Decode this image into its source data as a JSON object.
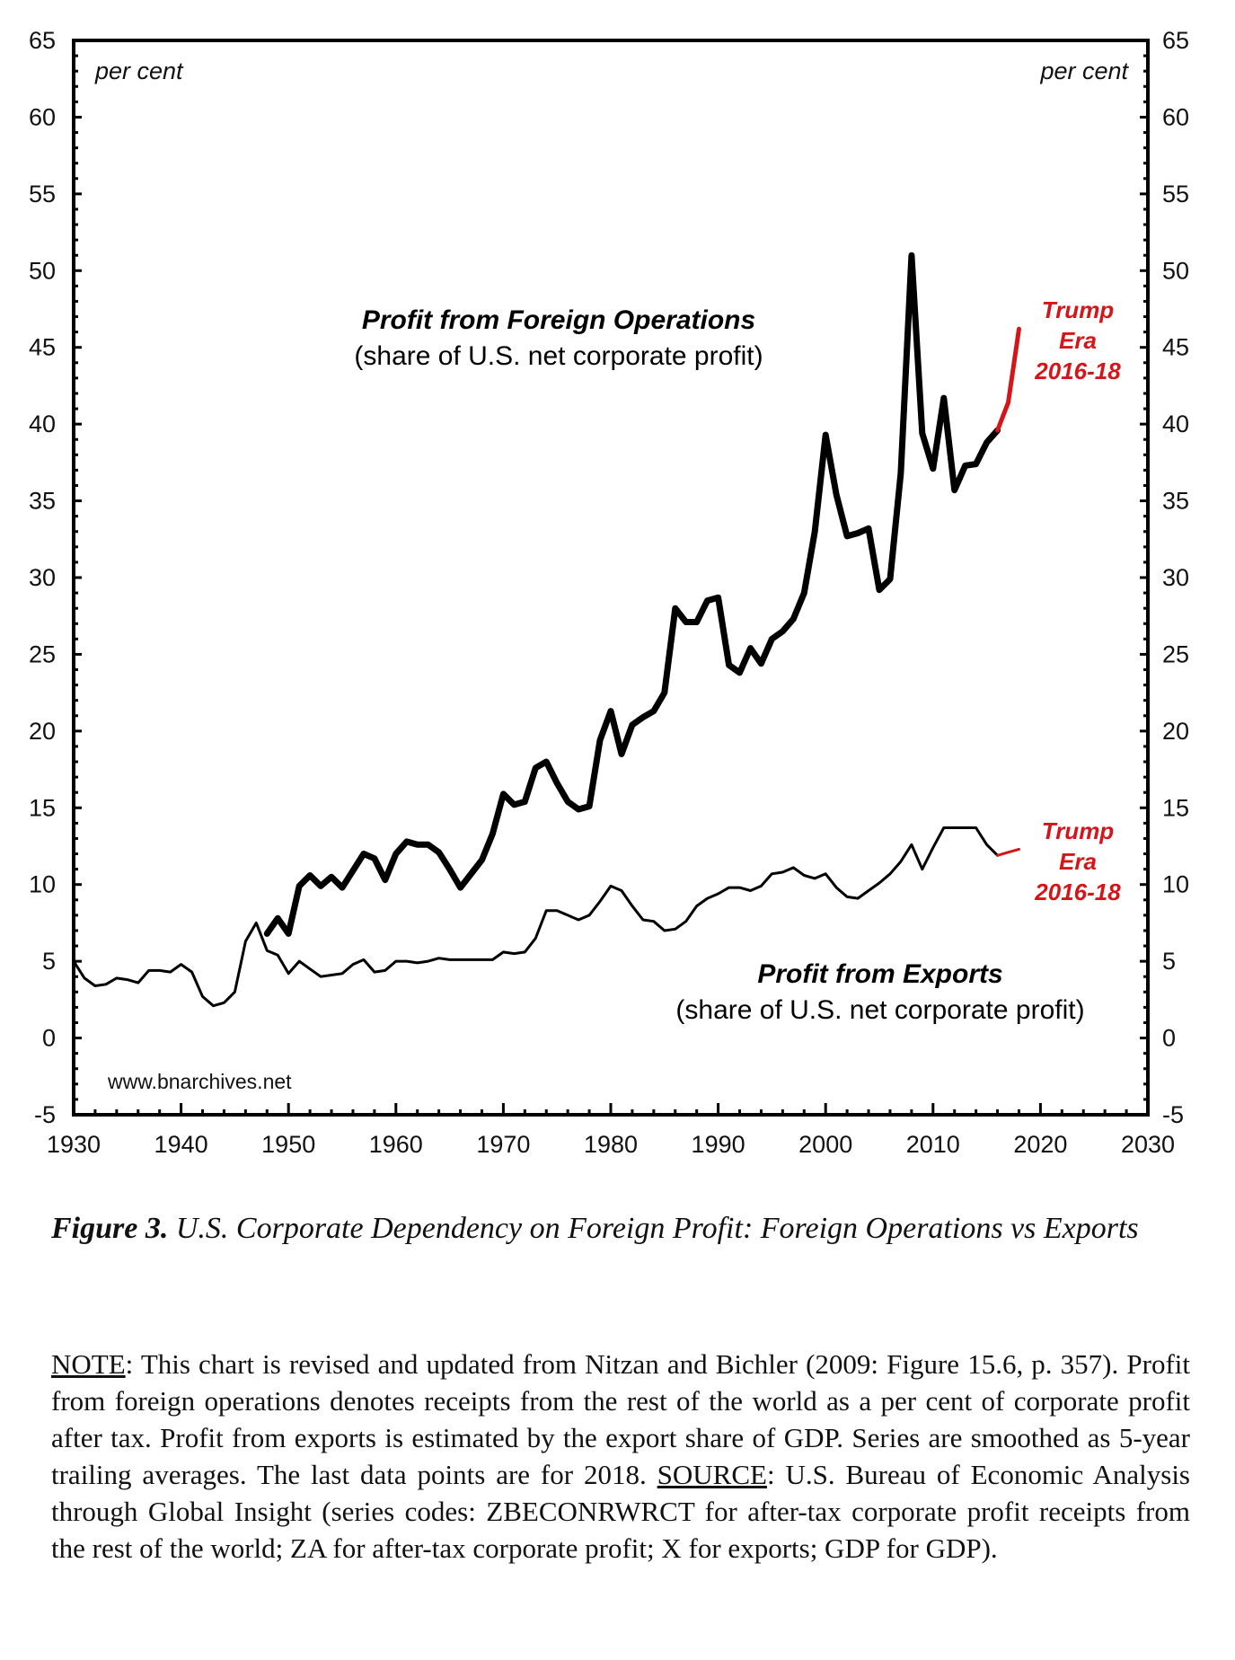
{
  "chart_data": {
    "type": "line",
    "xlim": [
      1930,
      2030
    ],
    "ylim": [
      -5,
      65
    ],
    "x_ticks": [
      "1930",
      "1940",
      "1950",
      "1960",
      "1970",
      "1980",
      "1990",
      "2000",
      "2010",
      "2020",
      "2030"
    ],
    "y_ticks": [
      "-5",
      "0",
      "5",
      "10",
      "15",
      "20",
      "25",
      "30",
      "35",
      "40",
      "45",
      "50",
      "55",
      "60",
      "65"
    ],
    "y_unit_left": "per cent",
    "y_unit_right": "per cent",
    "grid": false,
    "watermark": "www.bnarchives.net",
    "series": [
      {
        "name": "Profit from Foreign Operations",
        "subtitle": "(share of U.S. net corporate profit)",
        "color": "#000000",
        "highlight_color": "#d4161b",
        "highlight_from": 2016,
        "x": [
          1948,
          1949,
          1950,
          1951,
          1952,
          1953,
          1954,
          1955,
          1956,
          1957,
          1958,
          1959,
          1960,
          1961,
          1962,
          1963,
          1964,
          1965,
          1966,
          1967,
          1968,
          1969,
          1970,
          1971,
          1972,
          1973,
          1974,
          1975,
          1976,
          1977,
          1978,
          1979,
          1980,
          1981,
          1982,
          1983,
          1984,
          1985,
          1986,
          1987,
          1988,
          1989,
          1990,
          1991,
          1992,
          1993,
          1994,
          1995,
          1996,
          1997,
          1998,
          1999,
          2000,
          2001,
          2002,
          2003,
          2004,
          2005,
          2006,
          2007,
          2008,
          2009,
          2010,
          2011,
          2012,
          2013,
          2014,
          2015,
          2016,
          2017,
          2018
        ],
        "values": [
          6.8,
          7.8,
          6.8,
          9.9,
          10.6,
          9.9,
          10.5,
          9.8,
          10.9,
          12.0,
          11.7,
          10.3,
          12.0,
          12.8,
          12.6,
          12.6,
          12.1,
          11.0,
          9.8,
          10.7,
          11.6,
          13.3,
          15.9,
          15.2,
          15.4,
          17.6,
          18.0,
          16.6,
          15.4,
          14.9,
          15.1,
          19.4,
          21.3,
          18.5,
          20.4,
          20.9,
          21.3,
          22.5,
          28.0,
          27.1,
          27.1,
          28.5,
          28.7,
          24.3,
          23.8,
          25.4,
          24.4,
          26.0,
          26.5,
          27.3,
          29.0,
          33.0,
          39.3,
          35.4,
          32.7,
          32.9,
          33.2,
          29.2,
          29.9,
          36.8,
          51.0,
          39.4,
          37.1,
          41.7,
          35.7,
          37.3,
          37.4,
          38.8,
          39.6,
          41.4,
          46.2
        ]
      },
      {
        "name": "Profit from Exports",
        "subtitle": "(share of U.S. net corporate profit)",
        "color": "#000000",
        "highlight_color": "#d4161b",
        "highlight_from": 2016,
        "x": [
          1930,
          1931,
          1932,
          1933,
          1934,
          1935,
          1936,
          1937,
          1938,
          1939,
          1940,
          1941,
          1942,
          1943,
          1944,
          1945,
          1946,
          1947,
          1948,
          1949,
          1950,
          1951,
          1952,
          1953,
          1954,
          1955,
          1956,
          1957,
          1958,
          1959,
          1960,
          1961,
          1962,
          1963,
          1964,
          1965,
          1966,
          1967,
          1968,
          1969,
          1970,
          1971,
          1972,
          1973,
          1974,
          1975,
          1976,
          1977,
          1978,
          1979,
          1980,
          1981,
          1982,
          1983,
          1984,
          1985,
          1986,
          1987,
          1988,
          1989,
          1990,
          1991,
          1992,
          1993,
          1994,
          1995,
          1996,
          1997,
          1998,
          1999,
          2000,
          2001,
          2002,
          2003,
          2004,
          2005,
          2006,
          2007,
          2008,
          2009,
          2010,
          2011,
          2012,
          2013,
          2014,
          2015,
          2016,
          2017,
          2018
        ],
        "values": [
          5.0,
          3.9,
          3.4,
          3.5,
          3.9,
          3.8,
          3.6,
          4.4,
          4.4,
          4.3,
          4.8,
          4.3,
          2.7,
          2.1,
          2.3,
          3.0,
          6.3,
          7.5,
          5.7,
          5.4,
          4.2,
          5.0,
          4.5,
          4.0,
          4.1,
          4.2,
          4.8,
          5.1,
          4.3,
          4.4,
          5.0,
          5.0,
          4.9,
          5.0,
          5.2,
          5.1,
          5.1,
          5.1,
          5.1,
          5.1,
          5.6,
          5.5,
          5.6,
          6.5,
          8.3,
          8.3,
          8.0,
          7.7,
          8.0,
          8.9,
          9.9,
          9.6,
          8.6,
          7.7,
          7.6,
          7.0,
          7.1,
          7.6,
          8.6,
          9.1,
          9.4,
          9.8,
          9.8,
          9.6,
          9.9,
          10.7,
          10.8,
          11.1,
          10.6,
          10.4,
          10.7,
          9.8,
          9.2,
          9.1,
          9.6,
          10.1,
          10.7,
          11.5,
          12.6,
          11.0,
          12.4,
          13.7,
          13.7,
          13.7,
          13.7,
          12.6,
          11.9,
          12.1,
          12.3
        ]
      }
    ],
    "annotations": [
      {
        "lines": [
          "Trump",
          "Era",
          "2016-18"
        ],
        "series": "Profit from Foreign Operations",
        "color": "#d4161b"
      },
      {
        "lines": [
          "Trump",
          "Era",
          "2016-18"
        ],
        "series": "Profit from Exports",
        "color": "#d4161b"
      }
    ]
  },
  "caption": {
    "label": "Figure 3.",
    "text": " U.S. Corporate Dependency on Foreign Profit: Foreign Operations vs Exports"
  },
  "note": {
    "note_label": "NOTE",
    "note_text": ": This chart is revised and updated from Nitzan and Bichler (2009: Figure 15.6, p. 357). Profit from foreign operations denotes receipts from the rest of the world as a per cent of corporate profit after tax. Profit from exports is estimated by the export share of GDP. Series are smoothed as 5-year trailing averages. The last data points are for 2018. ",
    "source_label": "SOURCE",
    "source_text": ": U.S. Bureau of Economic Analysis through Global Insight (series codes: ZBECONRWRCT for after-tax corporate profit receipts from the rest of the world; ZA for after-tax corporate profit; X for exports; GDP for GDP)."
  }
}
